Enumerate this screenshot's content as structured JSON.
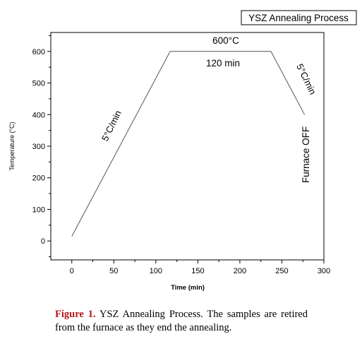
{
  "chart_data": {
    "type": "line",
    "title": "YSZ Annealing Process",
    "xlabel": "Time (min)",
    "ylabel": "Temperature (°C)",
    "xlim": [
      -25,
      300
    ],
    "ylim": [
      -60,
      660
    ],
    "xticks": [
      0,
      50,
      100,
      150,
      200,
      250,
      300
    ],
    "yticks": [
      0,
      100,
      200,
      300,
      400,
      500,
      600
    ],
    "grid": false,
    "series": [
      {
        "x": [
          0,
          117,
          237,
          277
        ],
        "y": [
          15,
          600,
          600,
          400
        ],
        "color": "#555555"
      }
    ],
    "annotations": {
      "ramp_up": "5°C/min",
      "hold_temp": "600°C",
      "hold_time": "120 min",
      "ramp_down": "5°C/min",
      "furnace_off": "Furnace OFF"
    }
  },
  "caption": {
    "label": "Figure 1.",
    "text": "YSZ Annealing Process. The samples are retired from the furnace as they end the annealing."
  }
}
